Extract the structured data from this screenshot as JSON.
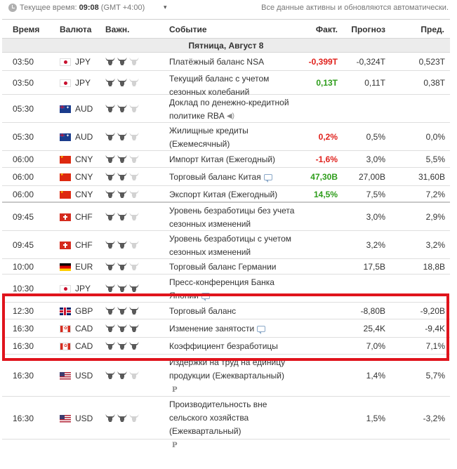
{
  "topbar": {
    "time_label": "Текущее время:",
    "time_value": "09:08",
    "timezone": "(GMT +4:00)",
    "auto_update_note": "Все данные активны и обновляются автоматически."
  },
  "columns": {
    "time": "Время",
    "currency": "Валюта",
    "importance": "Важн.",
    "event": "Событие",
    "actual": "Факт.",
    "forecast": "Прогноз",
    "previous": "Пред."
  },
  "day_header": "Пятница, Август 8",
  "colors": {
    "negative": "#e0221d",
    "positive": "#2e9d1b",
    "highlight_border": "#e0141c"
  },
  "rows": [
    {
      "time": "03:50",
      "flag": "japan-flag-icon",
      "currency": "JPY",
      "importance": 2,
      "event": "Платёжный баланс NSA",
      "actual": "-0,399T",
      "actual_color": "red",
      "forecast": "-0,324T",
      "previous": "0,523T"
    },
    {
      "time": "03:50",
      "flag": "japan-flag-icon",
      "currency": "JPY",
      "importance": 2,
      "event": "Текущий баланс с учетом сезонных колебаний",
      "actual": "0,13T",
      "actual_color": "green",
      "forecast": "0,11T",
      "previous": "0,38T"
    },
    {
      "time": "05:30",
      "flag": "australia-flag-icon",
      "currency": "AUD",
      "importance": 2,
      "event": "Доклад по денежно-кредитной политике RBA",
      "event_icon": "megaphone-icon",
      "actual": "",
      "forecast": "",
      "previous": ""
    },
    {
      "time": "05:30",
      "flag": "australia-flag-icon",
      "currency": "AUD",
      "importance": 2,
      "event": "Жилищные кредиты (Ежемесячный)",
      "actual": "0,2%",
      "actual_color": "red",
      "forecast": "0,5%",
      "previous": "0,0%"
    },
    {
      "time": "06:00",
      "flag": "china-flag-icon",
      "currency": "CNY",
      "importance": 2,
      "event": "Импорт Китая (Ежегодный)",
      "actual": "-1,6%",
      "actual_color": "red",
      "forecast": "3,0%",
      "previous": "5,5%"
    },
    {
      "time": "06:00",
      "flag": "china-flag-icon",
      "currency": "CNY",
      "importance": 2,
      "event": "Торговый баланс Китая",
      "event_icon": "speech-bubble-icon",
      "actual": "47,30B",
      "actual_color": "green",
      "forecast": "27,00B",
      "previous": "31,60B"
    },
    {
      "time": "06:00",
      "flag": "china-flag-icon",
      "currency": "CNY",
      "importance": 2,
      "event": "Экспорт Китая (Ежегодный)",
      "actual": "14,5%",
      "actual_color": "green",
      "forecast": "7,5%",
      "previous": "7,2%"
    },
    {
      "time": "09:45",
      "flag": "switzerland-flag-icon",
      "currency": "CHF",
      "importance": 2,
      "event": "Уровень безработицы без учета сезонных изменений",
      "actual": "",
      "forecast": "3,0%",
      "previous": "2,9%"
    },
    {
      "time": "09:45",
      "flag": "switzerland-flag-icon",
      "currency": "CHF",
      "importance": 2,
      "event": "Уровень безработицы с учетом сезонных изменений",
      "actual": "",
      "forecast": "3,2%",
      "previous": "3,2%"
    },
    {
      "time": "10:00",
      "flag": "germany-flag-icon",
      "currency": "EUR",
      "importance": 2,
      "event": "Торговый баланс Германии",
      "actual": "",
      "forecast": "17,5B",
      "previous": "18,8B"
    },
    {
      "time": "10:30",
      "flag": "japan-flag-icon",
      "currency": "JPY",
      "importance": 3,
      "event": "Пресс-конференция Банка Японии",
      "event_icon": "speech-bubble-icon",
      "actual": "",
      "forecast": "",
      "previous": ""
    },
    {
      "time": "12:30",
      "flag": "uk-flag-icon",
      "currency": "GBP",
      "importance": 3,
      "event": "Торговый баланс",
      "actual": "",
      "forecast": "-8,80B",
      "previous": "-9,20B"
    },
    {
      "time": "16:30",
      "flag": "canada-flag-icon",
      "currency": "CAD",
      "importance": 3,
      "event": "Изменение занятости",
      "event_icon": "speech-bubble-icon",
      "actual": "",
      "forecast": "25,4K",
      "previous": "-9,4K"
    },
    {
      "time": "16:30",
      "flag": "canada-flag-icon",
      "currency": "CAD",
      "importance": 3,
      "event": "Коэффициент безработицы",
      "actual": "",
      "forecast": "7,0%",
      "previous": "7,1%"
    },
    {
      "time": "16:30",
      "flag": "usa-flag-icon",
      "currency": "USD",
      "importance": 2,
      "event": "Издержки на труд на единицу продукции (Ежеквартальный)",
      "event_icon": "preliminary-icon",
      "event_icon_text": "P",
      "actual": "",
      "forecast": "1,4%",
      "previous": "5,7%"
    },
    {
      "time": "16:30",
      "flag": "usa-flag-icon",
      "currency": "USD",
      "importance": 2,
      "event": "Производительность вне сельского хозяйства (Ежеквартальный)",
      "event_icon": "preliminary-icon",
      "event_icon_text": "P",
      "actual": "",
      "forecast": "1,5%",
      "previous": "-3,2%"
    }
  ]
}
